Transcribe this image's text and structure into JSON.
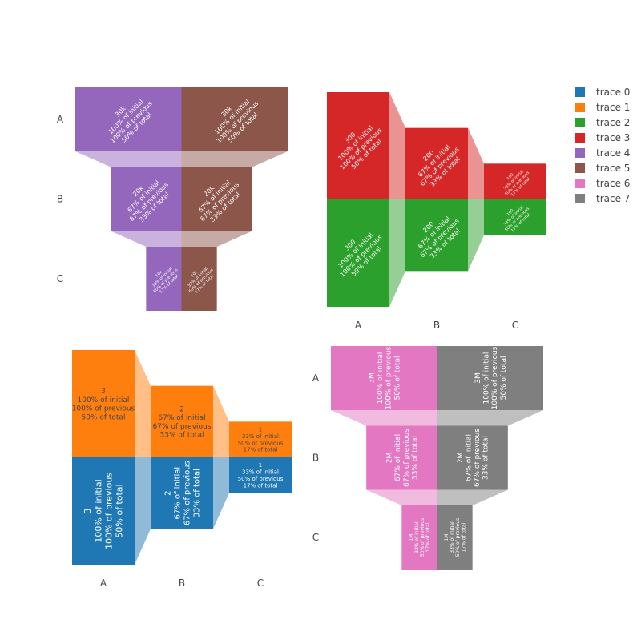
{
  "chart_data": {
    "type": "funnel",
    "title": "",
    "subplots": [
      {
        "orientation": "h",
        "categories": [
          "A",
          "B",
          "C"
        ],
        "series": [
          {
            "name": "trace 4",
            "color": "#9467bd",
            "values": [
              30000,
              20000,
              10000
            ],
            "value_labels": [
              "30k",
              "20k",
              "10k"
            ],
            "pct_initial": [
              "100% of initial",
              "67% of initial",
              "33% of initial"
            ],
            "pct_previous": [
              "100% of previous",
              "67% of previous",
              "50% of previous"
            ],
            "pct_total": [
              "50% of total",
              "33% of total",
              "17% of total"
            ]
          },
          {
            "name": "trace 5",
            "color": "#8c564b",
            "values": [
              30000,
              20000,
              10000
            ],
            "value_labels": [
              "30k",
              "20k",
              "10k"
            ],
            "pct_initial": [
              "100% of initial",
              "67% of initial",
              "33% of initial"
            ],
            "pct_previous": [
              "100% of previous",
              "67% of previous",
              "50% of previous"
            ],
            "pct_total": [
              "50% of total",
              "33% of total",
              "17% of total"
            ]
          }
        ]
      },
      {
        "orientation": "v",
        "categories": [
          "A",
          "B",
          "C"
        ],
        "series": [
          {
            "name": "trace 2",
            "color": "#2ca02c",
            "values": [
              300,
              200,
              100
            ],
            "value_labels": [
              "300",
              "200",
              "100"
            ],
            "pct_initial": [
              "100% of initial",
              "67% of initial",
              "33% of initial"
            ],
            "pct_previous": [
              "100% of previous",
              "67% of previous",
              "50% of previous"
            ],
            "pct_total": [
              "50% of total",
              "33% of total",
              "17% of total"
            ]
          },
          {
            "name": "trace 3",
            "color": "#d62728",
            "values": [
              300,
              200,
              100
            ],
            "value_labels": [
              "300",
              "200",
              "100"
            ],
            "pct_initial": [
              "100% of initial",
              "67% of initial",
              "33% of initial"
            ],
            "pct_previous": [
              "100% of previous",
              "67% of previous",
              "50% of previous"
            ],
            "pct_total": [
              "50% of total",
              "33% of total",
              "17% of total"
            ]
          }
        ]
      },
      {
        "orientation": "v",
        "categories": [
          "A",
          "B",
          "C"
        ],
        "series": [
          {
            "name": "trace 0",
            "color": "#1f77b4",
            "values": [
              3,
              2,
              1
            ],
            "value_labels": [
              "3",
              "2",
              "1"
            ],
            "pct_initial": [
              "100% of initial",
              "67% of initial",
              "33% of initial"
            ],
            "pct_previous": [
              "100% of previous",
              "67% of previous",
              "50% of previous"
            ],
            "pct_total": [
              "50% of total",
              "33% of total",
              "17% of total"
            ]
          },
          {
            "name": "trace 1",
            "color": "#ff7f0e",
            "values": [
              3,
              2,
              1
            ],
            "value_labels": [
              "3",
              "2",
              "1"
            ],
            "pct_initial": [
              "100% of initial",
              "67% of initial",
              "33% of initial"
            ],
            "pct_previous": [
              "100% of previous",
              "67% of previous",
              "50% of previous"
            ],
            "pct_total": [
              "50% of total",
              "33% of total",
              "17% of total"
            ]
          }
        ]
      },
      {
        "orientation": "h",
        "categories": [
          "A",
          "B",
          "C"
        ],
        "series": [
          {
            "name": "trace 6",
            "color": "#e377c2",
            "values": [
              3000000,
              2000000,
              1000000
            ],
            "value_labels": [
              "3M",
              "2M",
              "1M"
            ],
            "pct_initial": [
              "100% of initial",
              "67% of initial",
              "33% of initial"
            ],
            "pct_previous": [
              "100% of previous",
              "67% of previous",
              "50% of previous"
            ],
            "pct_total": [
              "50% of total",
              "33% of total",
              "17% of total"
            ]
          },
          {
            "name": "trace 7",
            "color": "#7f7f7f",
            "values": [
              3000000,
              2000000,
              1000000
            ],
            "value_labels": [
              "3M",
              "2M",
              "1M"
            ],
            "pct_initial": [
              "100% of initial",
              "67% of initial",
              "33% of initial"
            ],
            "pct_previous": [
              "100% of previous",
              "67% of previous",
              "50% of previous"
            ],
            "pct_total": [
              "50% of total",
              "33% of total",
              "17% of total"
            ]
          }
        ]
      }
    ],
    "legend": {
      "position": "top-right",
      "items": [
        {
          "name": "trace 0",
          "color": "#1f77b4"
        },
        {
          "name": "trace 1",
          "color": "#ff7f0e"
        },
        {
          "name": "trace 2",
          "color": "#2ca02c"
        },
        {
          "name": "trace 3",
          "color": "#d62728"
        },
        {
          "name": "trace 4",
          "color": "#9467bd"
        },
        {
          "name": "trace 5",
          "color": "#8c564b"
        },
        {
          "name": "trace 6",
          "color": "#e377c2"
        },
        {
          "name": "trace 7",
          "color": "#7f7f7f"
        }
      ]
    }
  }
}
